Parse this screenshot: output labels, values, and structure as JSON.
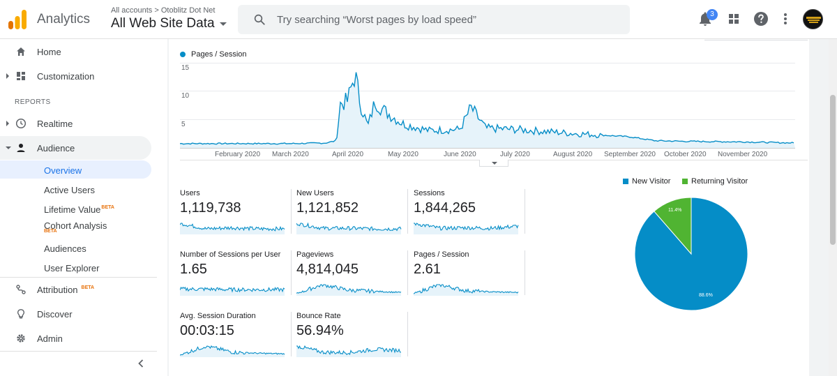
{
  "header": {
    "app_title": "Analytics",
    "account_path": "All accounts > Otoblitz Dot Net",
    "view_name": "All Web Site Data",
    "search_placeholder": "Try searching “Worst pages by load speed”",
    "notification_count": "3",
    "icons": [
      "analytics-logo",
      "search-icon",
      "bell-icon",
      "apps-grid-icon",
      "help-icon",
      "more-vert-icon",
      "avatar"
    ]
  },
  "sidebar": {
    "items": [
      {
        "label": "Home",
        "icon": "home-icon"
      },
      {
        "label": "Customization",
        "icon": "dashboard-icon"
      }
    ],
    "reports_label": "REPORTS",
    "report_items": [
      {
        "label": "Realtime",
        "icon": "clock-icon"
      },
      {
        "label": "Audience",
        "icon": "person-icon"
      }
    ],
    "audience_sub": [
      {
        "label": "Overview"
      },
      {
        "label": "Active Users"
      },
      {
        "label": "Lifetime Value",
        "badge": "BETA"
      },
      {
        "label": "Cohort Analysis",
        "badge": "BETA"
      },
      {
        "label": "Audiences"
      },
      {
        "label": "User Explorer"
      }
    ],
    "bottom_items": [
      {
        "label": "Attribution",
        "icon": "attribution-icon",
        "badge": "BETA"
      },
      {
        "label": "Discover",
        "icon": "lightbulb-icon"
      },
      {
        "label": "Admin",
        "icon": "gear-icon"
      }
    ]
  },
  "line_chart": {
    "legend": "Pages / Session",
    "color": "#058dc7",
    "yticks": [
      "15",
      "10",
      "5"
    ],
    "xticks": [
      "February 2020",
      "March 2020",
      "April 2020",
      "May 2020",
      "June 2020",
      "July 2020",
      "August 2020",
      "September 2020",
      "October 2020",
      "November 2020"
    ]
  },
  "metrics": [
    {
      "label": "Users",
      "value": "1,119,738"
    },
    {
      "label": "New Users",
      "value": "1,121,852"
    },
    {
      "label": "Sessions",
      "value": "1,844,265"
    },
    {
      "label": "Number of Sessions per User",
      "value": "1.65"
    },
    {
      "label": "Pageviews",
      "value": "4,814,045"
    },
    {
      "label": "Pages / Session",
      "value": "2.61"
    },
    {
      "label": "Avg. Session Duration",
      "value": "00:03:15"
    },
    {
      "label": "Bounce Rate",
      "value": "56.94%"
    }
  ],
  "pie": {
    "legend_new": "New Visitor",
    "legend_returning": "Returning Visitor",
    "color_new": "#058dc7",
    "color_returning": "#50b432",
    "label_new": "88.6%",
    "label_returning": "11.4%"
  },
  "chart_data": [
    {
      "type": "line",
      "series": [
        {
          "name": "Pages / Session"
        }
      ],
      "x_start": "2020-01-01",
      "x_end": "2020-11-30",
      "ylim": [
        0,
        15
      ],
      "yticks": [
        5,
        10,
        15
      ],
      "points": [
        [
          "2020-01-01",
          1.5
        ],
        [
          "2020-02-01",
          1.5
        ],
        [
          "2020-03-01",
          1.5
        ],
        [
          "2020-03-20",
          1.6
        ],
        [
          "2020-03-26",
          2.0
        ],
        [
          "2020-03-28",
          8.5
        ],
        [
          "2020-04-01",
          9.0
        ],
        [
          "2020-04-05",
          13.8
        ],
        [
          "2020-04-08",
          8.5
        ],
        [
          "2020-04-12",
          4.5
        ],
        [
          "2020-04-16",
          9.0
        ],
        [
          "2020-04-20",
          7.5
        ],
        [
          "2020-05-01",
          5.0
        ],
        [
          "2020-05-15",
          3.8
        ],
        [
          "2020-06-01",
          4.0
        ],
        [
          "2020-06-07",
          7.8
        ],
        [
          "2020-06-15",
          4.2
        ],
        [
          "2020-07-01",
          4.0
        ],
        [
          "2020-08-01",
          3.3
        ],
        [
          "2020-09-01",
          2.7
        ],
        [
          "2020-09-15",
          2.0
        ],
        [
          "2020-10-01",
          1.9
        ],
        [
          "2020-11-01",
          1.8
        ],
        [
          "2020-11-30",
          1.6
        ]
      ]
    },
    {
      "type": "pie",
      "categories": [
        "New Visitor",
        "Returning Visitor"
      ],
      "values": [
        88.6,
        11.4
      ]
    }
  ]
}
